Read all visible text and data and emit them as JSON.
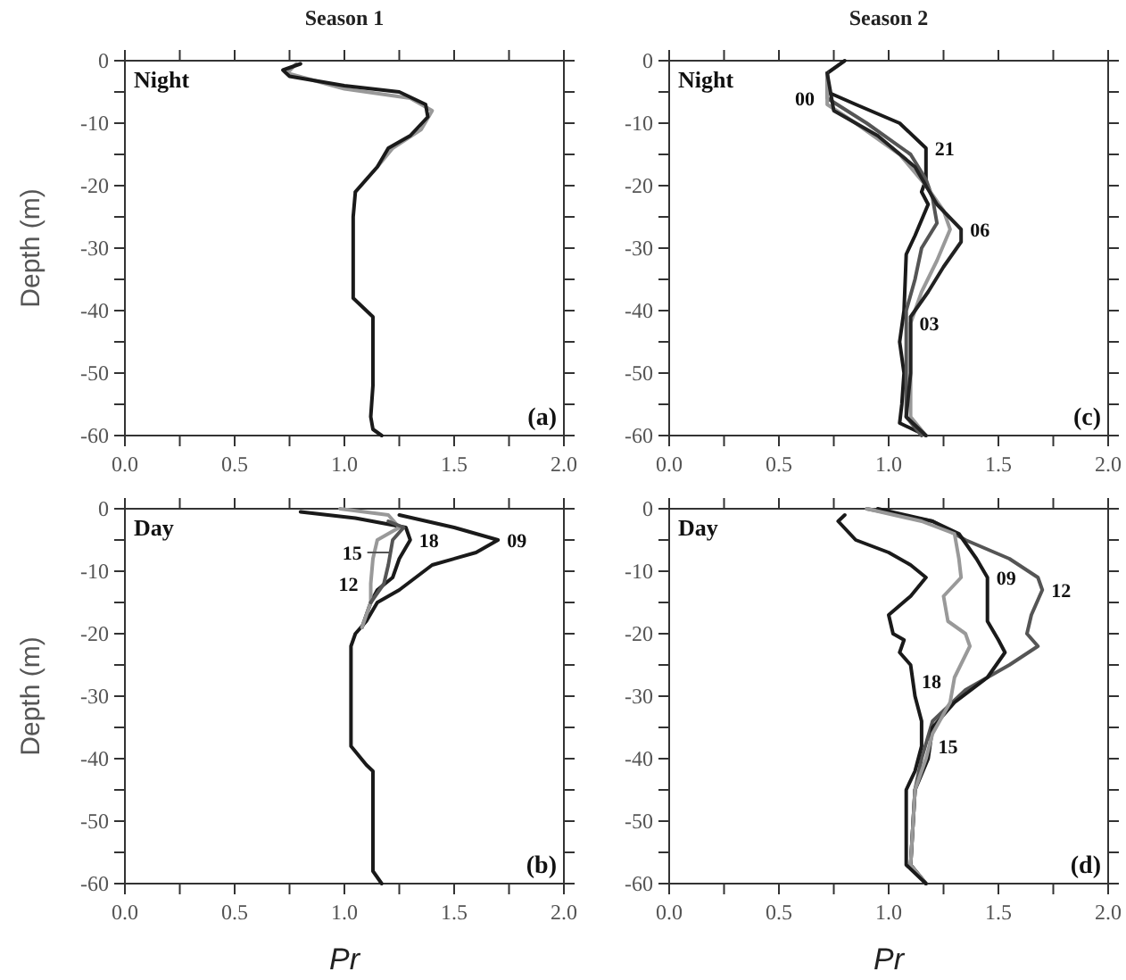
{
  "chart_data": [
    {
      "type": "line",
      "title": "Season 1",
      "ylabel": "Depth (m)",
      "annotations": [
        "Night",
        "(a)"
      ],
      "xlim": [
        0,
        2
      ],
      "ylim": [
        -60,
        0
      ],
      "xticks": [
        {
          "value": 0,
          "label": "0.0"
        },
        {
          "value": 0.25,
          "label": null
        },
        {
          "value": 0.5,
          "label": "0.5"
        },
        {
          "value": 0.75,
          "label": null
        },
        {
          "value": 1,
          "label": "1.0"
        },
        {
          "value": 1.25,
          "label": null
        },
        {
          "value": 1.5,
          "label": "1.5"
        },
        {
          "value": 1.75,
          "label": null
        },
        {
          "value": 2,
          "label": "2.0"
        }
      ],
      "yticks": [
        0,
        {
          "value": -5,
          "label": null
        },
        -10,
        {
          "value": -15,
          "label": null
        },
        -20,
        {
          "value": -25,
          "label": null
        },
        -30,
        {
          "value": -35,
          "label": null
        },
        -40,
        {
          "value": -45,
          "label": null
        },
        -50,
        {
          "value": -55,
          "label": null
        },
        -60
      ],
      "series": [
        {
          "color": "#999999",
          "x": [
            0.78,
            0.74,
            1.0,
            1.3,
            1.4,
            1.35,
            1.22,
            1.15,
            1.1,
            1.05
          ],
          "values": [
            -0.5,
            -2,
            -4.5,
            -6,
            -8,
            -11,
            -14,
            -17,
            -19,
            -21
          ]
        },
        {
          "color": "#1a1a1a",
          "x": [
            0.8,
            0.72,
            0.75,
            1.0,
            1.25,
            1.37,
            1.38,
            1.3,
            1.2,
            1.15,
            1.1,
            1.05,
            1.04,
            1.04,
            1.1,
            1.13,
            1.13,
            1.12,
            1.13,
            1.17
          ],
          "values": [
            -0.5,
            -1.5,
            -2.5,
            -4,
            -5,
            -7,
            -9,
            -12,
            -14,
            -17,
            -19,
            -21,
            -25,
            -38,
            -40,
            -41,
            -52,
            -57,
            -59,
            -60
          ]
        }
      ]
    },
    {
      "type": "line",
      "title": "Season 2",
      "annotations": [
        "Night",
        "(c)"
      ],
      "xlim": [
        0,
        2
      ],
      "ylim": [
        -60,
        0
      ],
      "xticks": [
        {
          "value": 0,
          "label": "0.0"
        },
        {
          "value": 0.25,
          "label": null
        },
        {
          "value": 0.5,
          "label": "0.5"
        },
        {
          "value": 0.75,
          "label": null
        },
        {
          "value": 1,
          "label": "1.0"
        },
        {
          "value": 1.25,
          "label": null
        },
        {
          "value": 1.5,
          "label": "1.5"
        },
        {
          "value": 1.75,
          "label": null
        },
        {
          "value": 2,
          "label": "2.0"
        }
      ],
      "yticks": [
        0,
        {
          "value": -5,
          "label": null
        },
        -10,
        {
          "value": -15,
          "label": null
        },
        -20,
        {
          "value": -25,
          "label": null
        },
        -30,
        {
          "value": -35,
          "label": null
        },
        -40,
        {
          "value": -45,
          "label": null
        },
        -50,
        {
          "value": -55,
          "label": null
        },
        -60
      ],
      "series": [
        {
          "name": "21",
          "color": "#1a1a1a",
          "x": [
            0.8,
            0.72,
            0.72,
            0.85,
            1.05,
            1.17,
            1.17,
            1.15,
            1.18,
            1.12,
            1.08,
            1.07,
            1.05,
            1.07,
            1.06,
            1.05,
            1.17
          ],
          "values": [
            0,
            -2,
            -5,
            -7,
            -10,
            -14,
            -19,
            -21,
            -23,
            -28,
            -31,
            -40,
            -45,
            -50,
            -55,
            -58,
            -60
          ]
        },
        {
          "name": "00",
          "color": "#555555",
          "x": [
            0.72,
            0.72,
            0.9,
            1.1,
            1.17,
            1.2,
            1.22,
            1.15,
            1.12,
            1.08,
            1.08,
            1.08,
            1.15
          ],
          "values": [
            -2,
            -6,
            -10,
            -15,
            -19,
            -22,
            -26,
            -30,
            -35,
            -40,
            -50,
            -57,
            -60
          ]
        },
        {
          "name": "03",
          "color": "#999999",
          "x": [
            0.72,
            0.72,
            0.85,
            1.05,
            1.17,
            1.25,
            1.28,
            1.22,
            1.15,
            1.1,
            1.1,
            1.1,
            1.17
          ],
          "values": [
            -2,
            -7,
            -10,
            -15,
            -20,
            -24,
            -27,
            -32,
            -37,
            -42,
            -50,
            -57,
            -60
          ]
        },
        {
          "name": "06",
          "color": "#222222",
          "x": [
            0.72,
            0.75,
            0.95,
            1.12,
            1.17,
            1.22,
            1.33,
            1.33,
            1.25,
            1.18,
            1.1,
            1.1,
            1.08,
            1.17
          ],
          "values": [
            -2,
            -8,
            -12,
            -17,
            -20,
            -23,
            -27,
            -29,
            -33,
            -37,
            -41,
            -50,
            -57,
            -60
          ]
        }
      ]
    },
    {
      "type": "line",
      "ylabel": "Depth (m)",
      "xlabel": "Pr",
      "annotations": [
        "Day",
        "(b)"
      ],
      "xlim": [
        0,
        2
      ],
      "ylim": [
        -60,
        0
      ],
      "xticks": [
        {
          "value": 0,
          "label": "0.0"
        },
        {
          "value": 0.25,
          "label": null
        },
        {
          "value": 0.5,
          "label": "0.5"
        },
        {
          "value": 0.75,
          "label": null
        },
        {
          "value": 1,
          "label": "1.0"
        },
        {
          "value": 1.25,
          "label": null
        },
        {
          "value": 1.5,
          "label": "1.5"
        },
        {
          "value": 1.75,
          "label": null
        },
        {
          "value": 2,
          "label": "2.0"
        }
      ],
      "yticks": [
        0,
        {
          "value": -5,
          "label": null
        },
        -10,
        {
          "value": -15,
          "label": null
        },
        -20,
        {
          "value": -25,
          "label": null
        },
        -30,
        {
          "value": -35,
          "label": null
        },
        -40,
        {
          "value": -45,
          "label": null
        },
        -50,
        {
          "value": -55,
          "label": null
        },
        -60
      ],
      "series": [
        {
          "name": "18",
          "color": "#1a1a1a",
          "x": [
            0.8,
            1.05,
            1.28,
            1.3,
            1.25,
            1.22,
            1.15,
            1.12,
            1.08
          ],
          "values": [
            -0.5,
            -1.5,
            -3,
            -5,
            -8,
            -11,
            -13,
            -15,
            -19
          ]
        },
        {
          "name": "09",
          "color": "#1a1a1a",
          "x": [
            1.25,
            1.5,
            1.7,
            1.6,
            1.4,
            1.25,
            1.15,
            1.1,
            1.05,
            1.03,
            1.03,
            1.1,
            1.13,
            1.13,
            1.17
          ],
          "values": [
            -1,
            -3,
            -5,
            -7,
            -9,
            -13,
            -15,
            -18,
            -20,
            -22,
            -38,
            -41,
            -42,
            -58,
            -60
          ]
        },
        {
          "name": "12",
          "color": "#999999",
          "x": [
            0.98,
            1.2,
            1.25,
            1.15,
            1.13,
            1.12,
            1.12,
            1.08
          ],
          "values": [
            0,
            -1,
            -3,
            -5,
            -8,
            -12,
            -15,
            -19
          ]
        },
        {
          "name": "15",
          "color": "#555555",
          "x": [
            1.2,
            1.27,
            1.22,
            1.2,
            1.18,
            1.12
          ],
          "values": [
            -2,
            -3,
            -5,
            -9,
            -12,
            -15
          ]
        }
      ]
    },
    {
      "type": "line",
      "xlabel": "Pr",
      "annotations": [
        "Day",
        "(d)"
      ],
      "xlim": [
        0,
        2
      ],
      "ylim": [
        -60,
        0
      ],
      "xticks": [
        {
          "value": 0,
          "label": "0.0"
        },
        {
          "value": 0.25,
          "label": null
        },
        {
          "value": 0.5,
          "label": "0.5"
        },
        {
          "value": 0.75,
          "label": null
        },
        {
          "value": 1,
          "label": "1.0"
        },
        {
          "value": 1.25,
          "label": null
        },
        {
          "value": 1.5,
          "label": "1.5"
        },
        {
          "value": 1.75,
          "label": null
        },
        {
          "value": 2,
          "label": "2.0"
        }
      ],
      "yticks": [
        0,
        {
          "value": -5,
          "label": null
        },
        -10,
        {
          "value": -15,
          "label": null
        },
        -20,
        {
          "value": -25,
          "label": null
        },
        -30,
        {
          "value": -35,
          "label": null
        },
        -40,
        {
          "value": -45,
          "label": null
        },
        -50,
        {
          "value": -55,
          "label": null
        },
        -60
      ],
      "series": [
        {
          "name": "12",
          "color": "#555555",
          "x": [
            0.9,
            1.2,
            1.35,
            1.55,
            1.68,
            1.7,
            1.65,
            1.63,
            1.68,
            1.55,
            1.35,
            1.2,
            1.15,
            1.12,
            1.1,
            1.17
          ],
          "values": [
            0,
            -2,
            -5,
            -8,
            -11,
            -13,
            -17,
            -20,
            -22,
            -25,
            -29,
            -34,
            -40,
            -45,
            -57,
            -60
          ]
        },
        {
          "name": "09",
          "color": "#1a1a1a",
          "x": [
            0.95,
            1.2,
            1.32,
            1.4,
            1.45,
            1.45,
            1.45,
            1.5,
            1.53,
            1.45,
            1.3,
            1.2,
            1.18,
            1.12,
            1.1,
            1.17
          ],
          "values": [
            0,
            -2,
            -4,
            -8,
            -11,
            -15,
            -18,
            -21,
            -23,
            -27,
            -31,
            -35,
            -40,
            -45,
            -57,
            -60
          ]
        },
        {
          "name": "15",
          "color": "#999999",
          "x": [
            0.9,
            1.15,
            1.3,
            1.32,
            1.33,
            1.25,
            1.27,
            1.35,
            1.37,
            1.3,
            1.28,
            1.2,
            1.17,
            1.12,
            1.1,
            1.17
          ],
          "values": [
            0,
            -2,
            -4,
            -8,
            -11,
            -14,
            -18,
            -20,
            -22,
            -27,
            -31,
            -36,
            -40,
            -45,
            -57,
            -60
          ]
        },
        {
          "name": "18",
          "color": "#1a1a1a",
          "x": [
            0.8,
            0.77,
            0.85,
            1.0,
            1.1,
            1.17,
            1.1,
            1.0,
            1.02,
            1.07,
            1.05,
            1.1,
            1.12,
            1.15,
            1.15,
            1.12,
            1.08,
            1.08,
            1.17
          ],
          "values": [
            -1,
            -2,
            -5,
            -7,
            -9,
            -11,
            -14,
            -17,
            -20,
            -21,
            -23,
            -25,
            -30,
            -34,
            -38,
            -42,
            -45,
            -57,
            -60
          ]
        }
      ]
    }
  ]
}
